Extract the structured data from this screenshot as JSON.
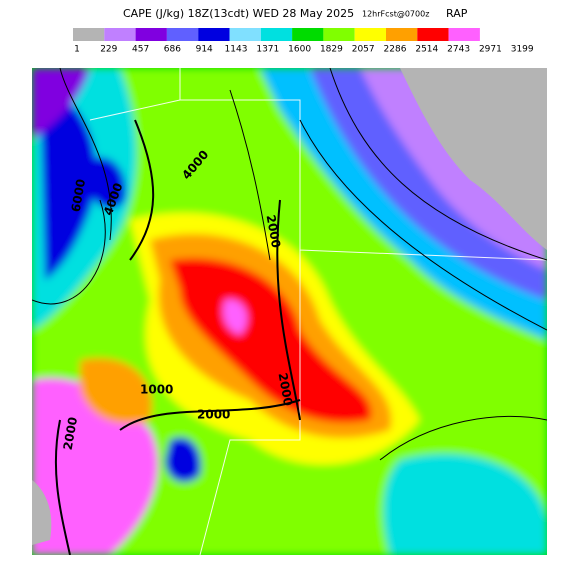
{
  "header": {
    "title": "CAPE (J/kg) 18Z(13cdt) WED 28 May 2025",
    "forecast": "12hrFcst@0700z",
    "model": "RAP"
  },
  "colorbar": {
    "colors": [
      "#b4b4b4",
      "#c080ff",
      "#8000e0",
      "#6060ff",
      "#0000e0",
      "#80e0ff",
      "#00e0e0",
      "#00dc00",
      "#80ff00",
      "#ffff00",
      "#ffa000",
      "#ff0000",
      "#ff60ff"
    ],
    "labels": [
      1,
      229,
      457,
      686,
      914,
      1143,
      1371,
      1600,
      1829,
      2057,
      2286,
      2514,
      2743,
      2971,
      3199
    ]
  },
  "map": {
    "contour_labels": [
      "4000",
      "2000",
      "6000",
      "4000",
      "2000",
      "2000",
      "1000",
      "2000"
    ]
  }
}
